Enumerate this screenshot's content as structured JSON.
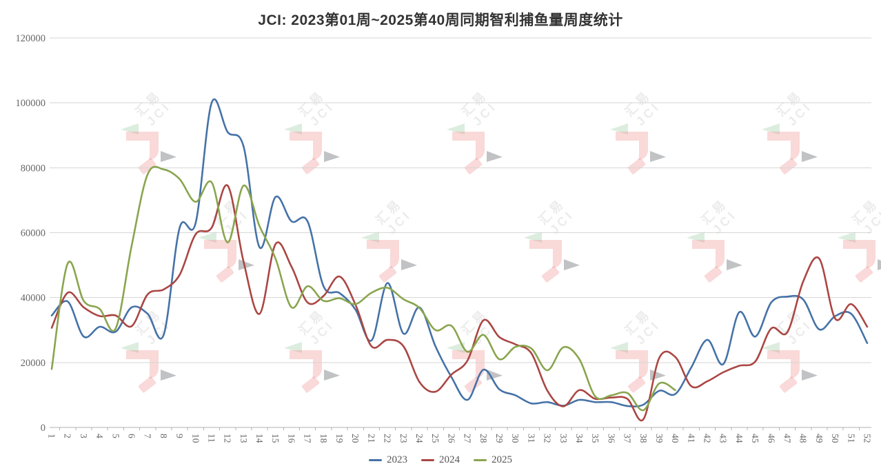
{
  "title": "JCI: 2023第01周~2025第40周同期智利捕鱼量周度统计",
  "watermark": {
    "text_cn": "汇易",
    "text_en": "JCI"
  },
  "axis_colors": {
    "grid": "#d6d6d6",
    "axis": "#b0b0b0",
    "tick_label": "#666666"
  },
  "chart_data": {
    "type": "line",
    "title": "JCI: 2023第01周~2025第40周同期智利捕鱼量周度统计",
    "xlabel": "",
    "ylabel": "",
    "x_weeks": [
      1,
      2,
      3,
      4,
      5,
      6,
      7,
      8,
      9,
      10,
      11,
      12,
      13,
      14,
      15,
      16,
      17,
      18,
      19,
      20,
      21,
      22,
      23,
      24,
      25,
      26,
      27,
      28,
      29,
      30,
      31,
      32,
      33,
      34,
      35,
      36,
      37,
      38,
      39,
      40,
      41,
      42,
      43,
      44,
      45,
      46,
      47,
      48,
      49,
      50,
      51,
      52
    ],
    "ylim": [
      0,
      120000
    ],
    "y_ticks": [
      0,
      20000,
      40000,
      60000,
      80000,
      100000,
      120000
    ],
    "grid": true,
    "smooth": true,
    "legend_position": "bottom",
    "series": [
      {
        "name": "2023",
        "color": "#4572A7",
        "start_week": 1,
        "values": [
          34500,
          38800,
          28000,
          31000,
          29500,
          37000,
          35000,
          28500,
          61500,
          63000,
          100000,
          91000,
          86500,
          55500,
          71000,
          63500,
          63500,
          43500,
          41400,
          36300,
          26800,
          44500,
          28900,
          37000,
          25000,
          15500,
          8500,
          17800,
          11700,
          9900,
          7400,
          7800,
          6700,
          8500,
          7800,
          7800,
          6600,
          7000,
          11300,
          10300,
          18500,
          27000,
          19500,
          35500,
          28000,
          38500,
          40300,
          39400,
          30200,
          34300,
          35000,
          26000
        ]
      },
      {
        "name": "2024",
        "color": "#AA4643",
        "start_week": 1,
        "values": [
          30700,
          41500,
          37000,
          34300,
          34500,
          31200,
          41000,
          42500,
          47000,
          59500,
          61500,
          74500,
          51000,
          35000,
          56500,
          49500,
          38500,
          40500,
          46500,
          37800,
          25000,
          27000,
          25000,
          14000,
          11000,
          16300,
          20600,
          33000,
          27800,
          25600,
          22800,
          11300,
          6500,
          11500,
          8800,
          9200,
          8800,
          2500,
          21500,
          21700,
          12700,
          14200,
          17000,
          19000,
          20300,
          30500,
          29300,
          45000,
          52000,
          33500,
          38000,
          31000
        ]
      },
      {
        "name": "2025",
        "color": "#89A54E",
        "start_week": 1,
        "values": [
          18000,
          50500,
          39000,
          36500,
          30500,
          56000,
          78000,
          79500,
          76500,
          69500,
          75500,
          57000,
          74500,
          62000,
          52000,
          37000,
          43500,
          39000,
          39800,
          38000,
          41500,
          43000,
          39500,
          36800,
          30000,
          31300,
          23300,
          28500,
          21000,
          24800,
          24300,
          17600,
          24700,
          21000,
          9500,
          9900,
          10600,
          5300,
          13600,
          11500
        ]
      }
    ]
  }
}
